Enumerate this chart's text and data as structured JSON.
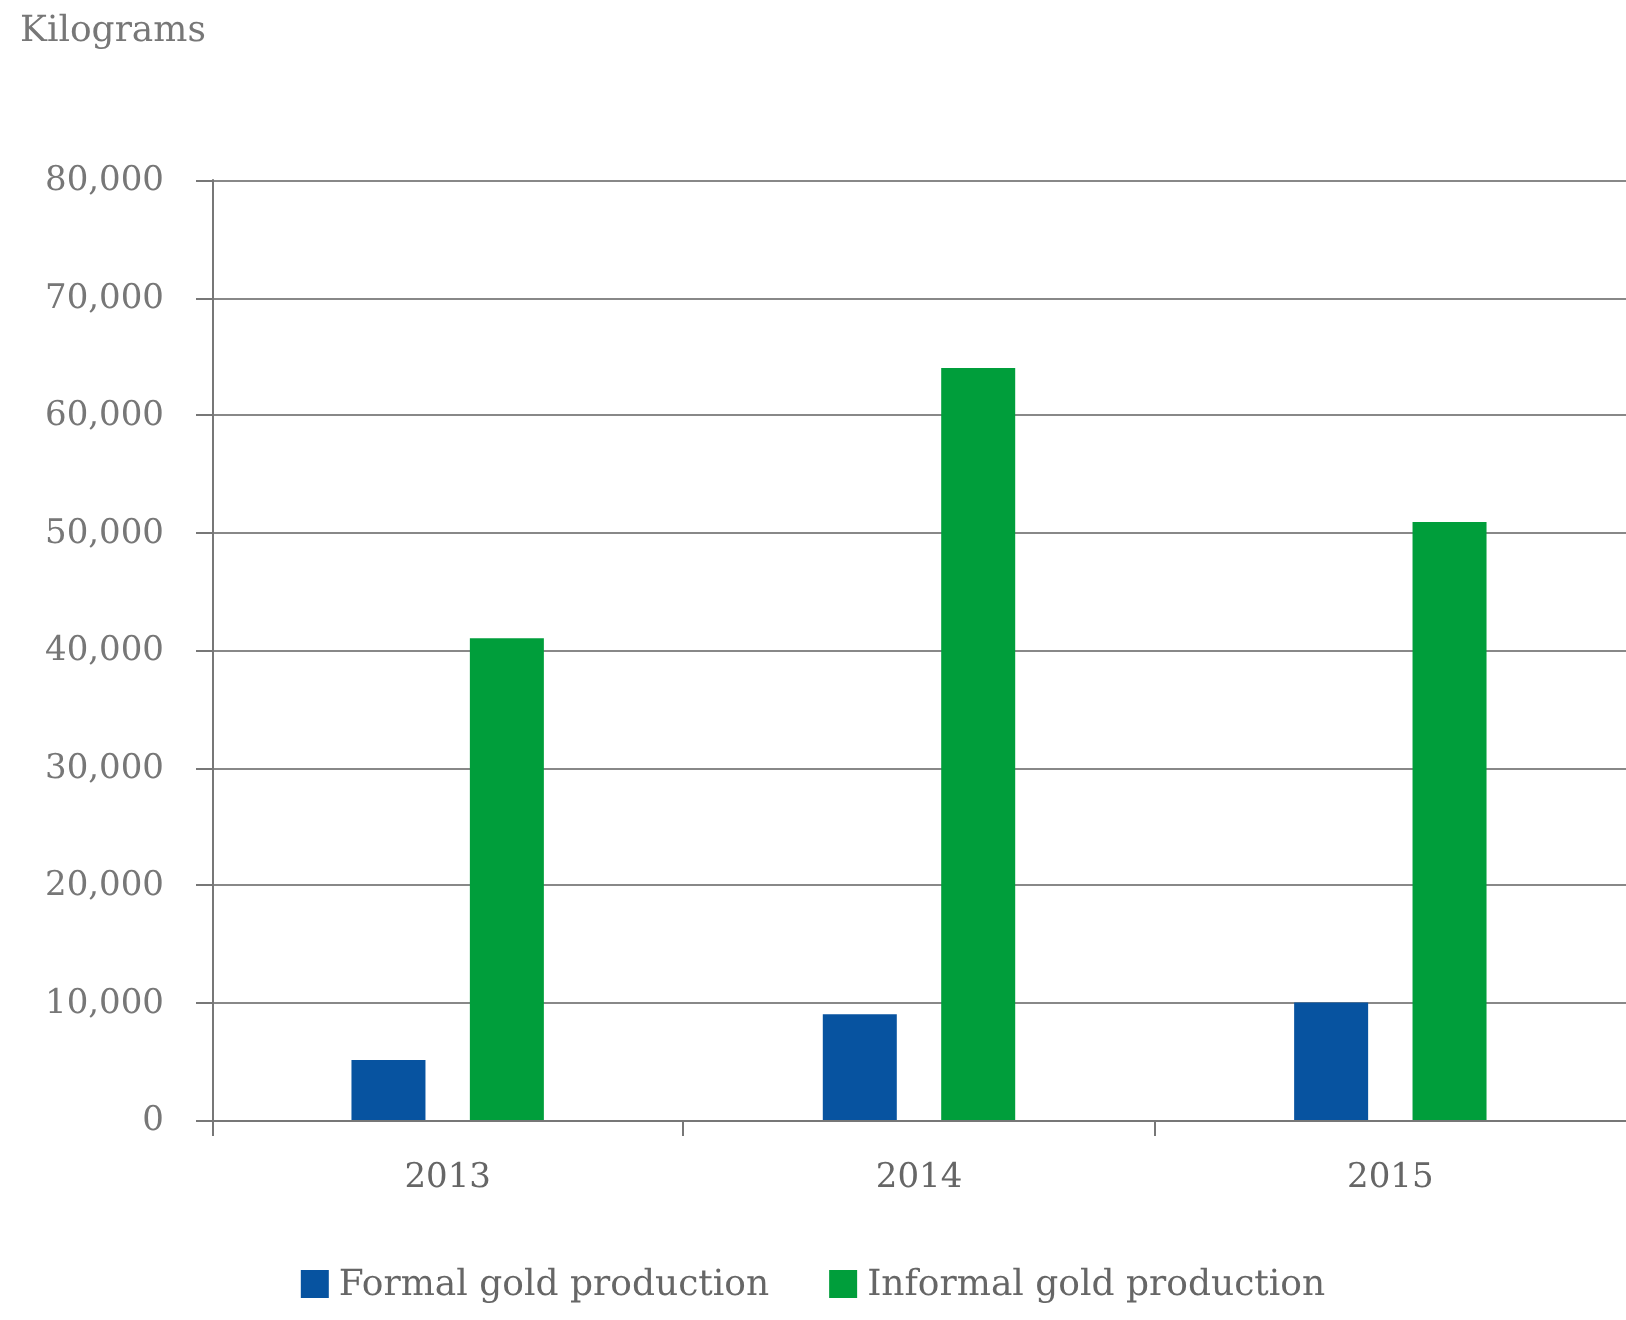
{
  "chart_data": {
    "type": "bar",
    "ylabel": "Kilograms",
    "categories": [
      "2013",
      "2014",
      "2015"
    ],
    "series": [
      {
        "name": "Formal gold production",
        "color": "#0753a0",
        "values": [
          5100,
          9000,
          10000
        ]
      },
      {
        "name": "Informal gold production",
        "color": "#009e3b",
        "values": [
          41000,
          64000,
          50900
        ]
      }
    ],
    "ylim": [
      0,
      80000
    ],
    "yticks": [
      {
        "value": 0,
        "label": "0"
      },
      {
        "value": 10000,
        "label": "10,000"
      },
      {
        "value": 20000,
        "label": "20,000"
      },
      {
        "value": 30000,
        "label": "30,000"
      },
      {
        "value": 40000,
        "label": "40,000"
      },
      {
        "value": 50000,
        "label": "50,000"
      },
      {
        "value": 60000,
        "label": "60,000"
      },
      {
        "value": 70000,
        "label": "70,000"
      },
      {
        "value": 80000,
        "label": "80,000"
      }
    ],
    "grid": "y",
    "legend": "bottom"
  }
}
